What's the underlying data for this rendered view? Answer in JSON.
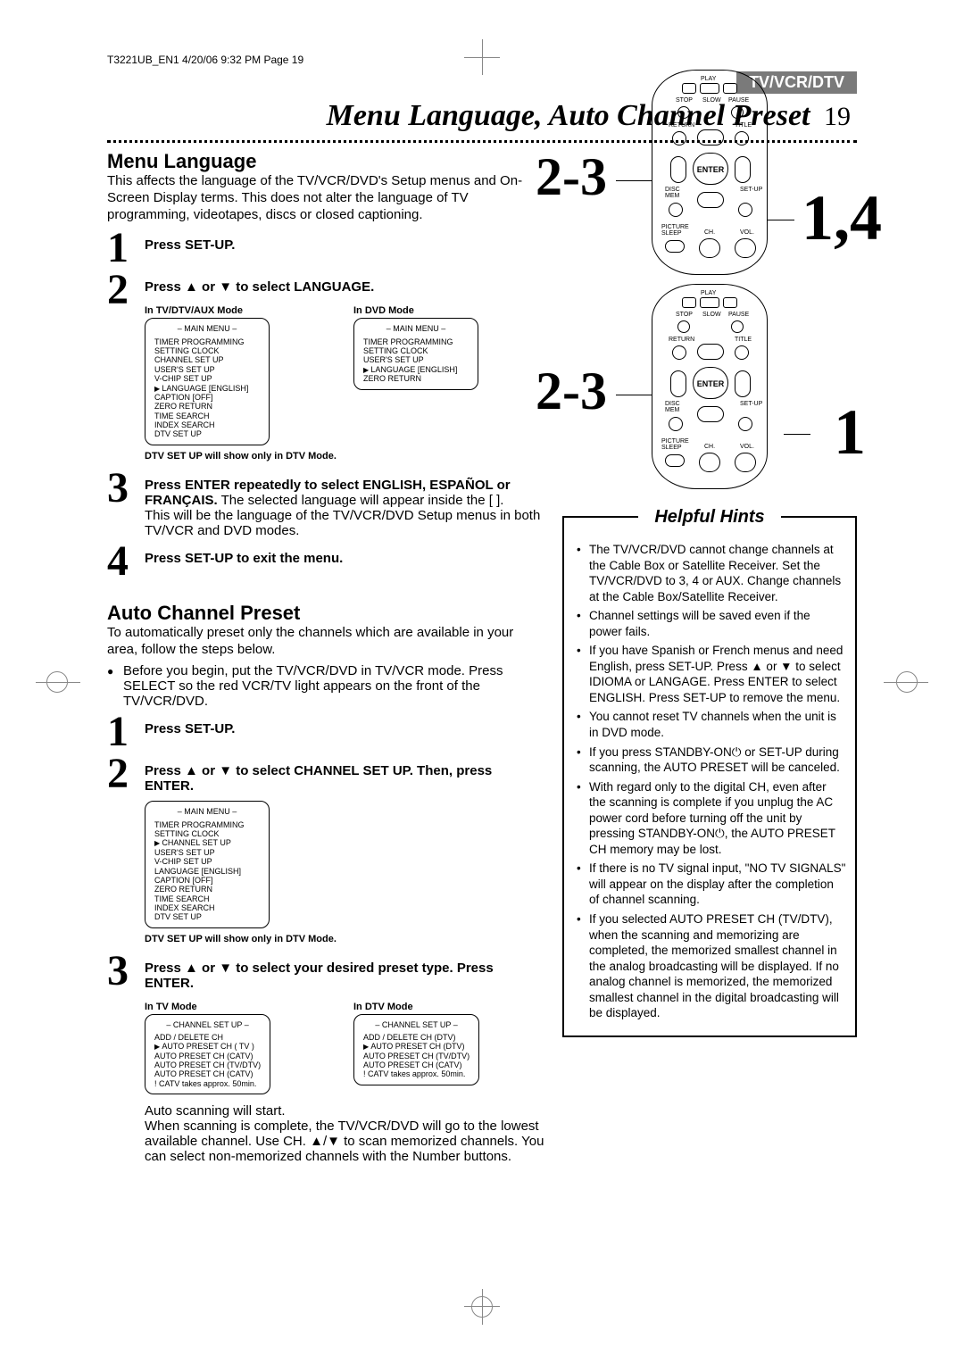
{
  "header_line": "T3221UB_EN1  4/20/06  9:32 PM  Page 19",
  "section_tab": "TV/VCR/DTV",
  "main_title": "Menu Language, Auto Channel Preset",
  "page_number": "19",
  "menu_language": {
    "heading": "Menu Language",
    "intro": "This affects the language of the TV/VCR/DVD's Setup menus and On-Screen Display terms. This does not alter the language of TV programming, videotapes, discs or closed captioning.",
    "steps": [
      {
        "num": "1",
        "main": "Press SET-UP.",
        "body": ""
      },
      {
        "num": "2",
        "main": "Press ▲ or ▼ to select LANGUAGE.",
        "body": "",
        "mode_a_label": "In TV/DTV/AUX Mode",
        "mode_b_label": "In DVD Mode",
        "menu_a": {
          "title": "– MAIN MENU –",
          "items": [
            "TIMER PROGRAMMING",
            "SETTING CLOCK",
            "CHANNEL SET UP",
            "USER'S SET UP",
            "V-CHIP SET UP",
            "LANGUAGE  [ENGLISH]",
            "CAPTION  [OFF]",
            "ZERO RETURN",
            "TIME SEARCH",
            "INDEX SEARCH",
            "DTV SET UP"
          ],
          "arrow_index": 5
        },
        "menu_b": {
          "title": "– MAIN MENU –",
          "items": [
            "TIMER PROGRAMMING",
            "SETTING CLOCK",
            "USER'S SET UP",
            "LANGUAGE  [ENGLISH]",
            "ZERO RETURN"
          ],
          "arrow_index": 3
        },
        "note": "DTV SET UP will show only in DTV Mode."
      },
      {
        "num": "3",
        "main": "Press ENTER repeatedly to select ENGLISH, ESPAÑOL or FRANÇAIS.",
        "body": " The selected language will appear inside the [ ].\nThis will be the language of the TV/VCR/DVD Setup menus in both TV/VCR and DVD modes."
      },
      {
        "num": "4",
        "main": "Press SET-UP to exit the menu.",
        "body": ""
      }
    ]
  },
  "auto_channel": {
    "heading": "Auto Channel Preset",
    "intro": "To automatically preset only the channels which are available in your area, follow the steps below.",
    "bullet": "Before you begin, put the TV/VCR/DVD in TV/VCR mode. Press SELECT so the red VCR/TV light appears on the front of the TV/VCR/DVD.",
    "steps": [
      {
        "num": "1",
        "main": "Press SET-UP.",
        "body": ""
      },
      {
        "num": "2",
        "main": "Press ▲ or ▼ to select CHANNEL SET UP. Then, press ENTER.",
        "body": "",
        "menu": {
          "title": "– MAIN MENU –",
          "items": [
            "TIMER PROGRAMMING",
            "SETTING CLOCK",
            "CHANNEL SET UP",
            "USER'S SET UP",
            "V-CHIP SET UP",
            "LANGUAGE  [ENGLISH]",
            "CAPTION  [OFF]",
            "ZERO RETURN",
            "TIME SEARCH",
            "INDEX SEARCH",
            "DTV SET UP"
          ],
          "arrow_index": 2
        },
        "note": "DTV SET UP will show only in DTV Mode."
      },
      {
        "num": "3",
        "main": "Press ▲ or ▼ to select your desired preset type. Press ENTER.",
        "mode_a_label": "In TV Mode",
        "mode_b_label": "In DTV Mode",
        "menu_a": {
          "title": "– CHANNEL SET UP –",
          "items": [
            "ADD / DELETE CH",
            "",
            "AUTO PRESET CH (  TV  )",
            "AUTO PRESET CH (CATV)",
            "AUTO PRESET CH (TV/DTV)",
            "AUTO PRESET CH (CATV)",
            "! CATV takes approx. 50min."
          ],
          "arrow_index": 2
        },
        "menu_b": {
          "title": "– CHANNEL SET UP –",
          "items": [
            "ADD / DELETE CH (DTV)",
            "",
            "AUTO PRESET CH (DTV)",
            "AUTO PRESET CH (TV/DTV)",
            "AUTO PRESET CH (CATV)",
            "! CATV takes approx. 50min."
          ],
          "arrow_index": 2
        },
        "tail": "Auto scanning will start.\nWhen scanning is complete, the TV/VCR/DVD will go to the lowest available channel. Use CH. ▲/▼ to scan memorized channels. You can select non-memorized channels with the Number buttons."
      }
    ]
  },
  "remote": {
    "callout_23": "2-3",
    "callout_14": "1,4",
    "callout_1": "1",
    "labels": {
      "play": "PLAY",
      "stop": "STOP",
      "slow": "SLOW",
      "pause": "PAUSE",
      "return": "RETURN",
      "title": "TITLE",
      "enter": "ENTER",
      "disc": "DISC\nMEM",
      "setup": "SET-UP",
      "picture": "PICTURE\nSLEEP",
      "ch": "CH.",
      "vol": "VOL."
    }
  },
  "hints": {
    "title": "Helpful Hints",
    "items": [
      "The TV/VCR/DVD cannot change channels at the Cable Box or Satellite Receiver. Set the TV/VCR/DVD to 3, 4 or AUX. Change channels at the Cable Box/Satellite Receiver.",
      "Channel settings will be saved even if the power fails.",
      "If you have Spanish or French menus and need English, press SET-UP. Press ▲ or ▼ to select IDIOMA or LANGAGE. Press ENTER to select ENGLISH. Press SET-UP to remove the menu.",
      "You cannot reset TV channels when the unit is in DVD mode.",
      "If you press STANDBY-ON⏻ or SET-UP during scanning, the AUTO PRESET will be canceled.",
      "With regard only to the digital CH, even after the scanning is complete if you unplug the AC power cord before turning off the unit by pressing STANDBY-ON⏻, the AUTO PRESET CH memory may be lost.",
      "If there is no TV signal input, \"NO TV SIGNALS\" will appear on the display after the completion of channel scanning.",
      "If you selected AUTO PRESET CH (TV/DTV), when the scanning and memorizing are completed, the memorized smallest channel in the analog broadcasting will be displayed. If no analog channel is memorized, the memorized smallest channel in the digital broadcasting will be displayed."
    ]
  },
  "colors": {
    "tab_bg": "#7a7a7a",
    "text": "#000000",
    "page_bg": "#ffffff"
  }
}
